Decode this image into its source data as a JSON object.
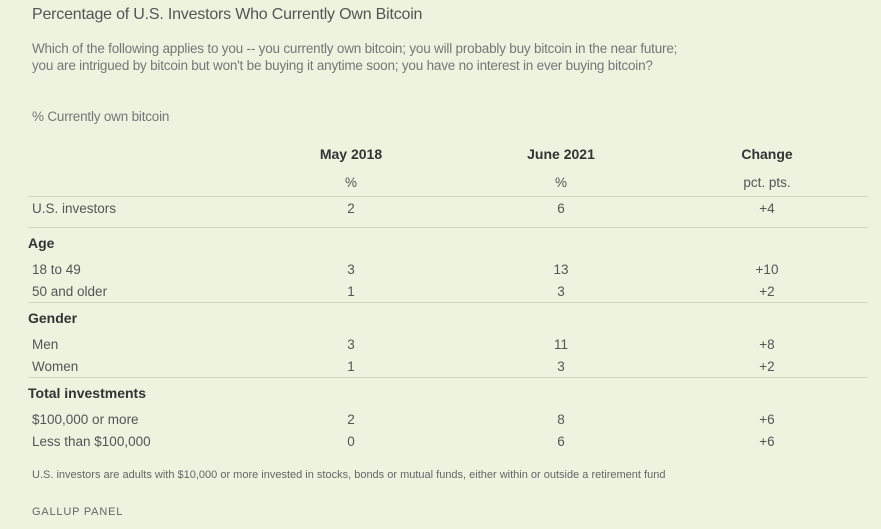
{
  "title": "Percentage of U.S. Investors Who Currently Own Bitcoin",
  "question": "Which of the following applies to you -- you currently own bitcoin; you will probably buy bitcoin in the near future; you are intrigued by bitcoin but won't be buying it anytime soon; you have no interest in ever buying bitcoin?",
  "subtitle": "% Currently own bitcoin",
  "chart_data": {
    "type": "table",
    "columns": [
      "May 2018",
      "June 2021",
      "Change"
    ],
    "units": [
      "%",
      "%",
      "pct. pts."
    ],
    "rows": [
      {
        "label": "U.S. investors",
        "values": [
          "2",
          "6",
          "+4"
        ]
      },
      {
        "section": "Age"
      },
      {
        "label": "18 to 49",
        "values": [
          "3",
          "13",
          "+10"
        ]
      },
      {
        "label": "50 and older",
        "values": [
          "1",
          "3",
          "+2"
        ]
      },
      {
        "section": "Gender"
      },
      {
        "label": "Men",
        "values": [
          "3",
          "11",
          "+8"
        ]
      },
      {
        "label": "Women",
        "values": [
          "1",
          "3",
          "+2"
        ]
      },
      {
        "section": "Total investments"
      },
      {
        "label": "$100,000 or more",
        "values": [
          "2",
          "8",
          "+6"
        ]
      },
      {
        "label": "Less than $100,000",
        "values": [
          "0",
          "6",
          "+6"
        ]
      }
    ]
  },
  "note": "U.S. investors are adults with $10,000 or more invested in stocks, bonds or mutual funds, either within or outside a retirement fund",
  "source": "GALLUP PANEL",
  "colors": {
    "background": "#ecf3df",
    "rule": "#cfd8c4"
  }
}
